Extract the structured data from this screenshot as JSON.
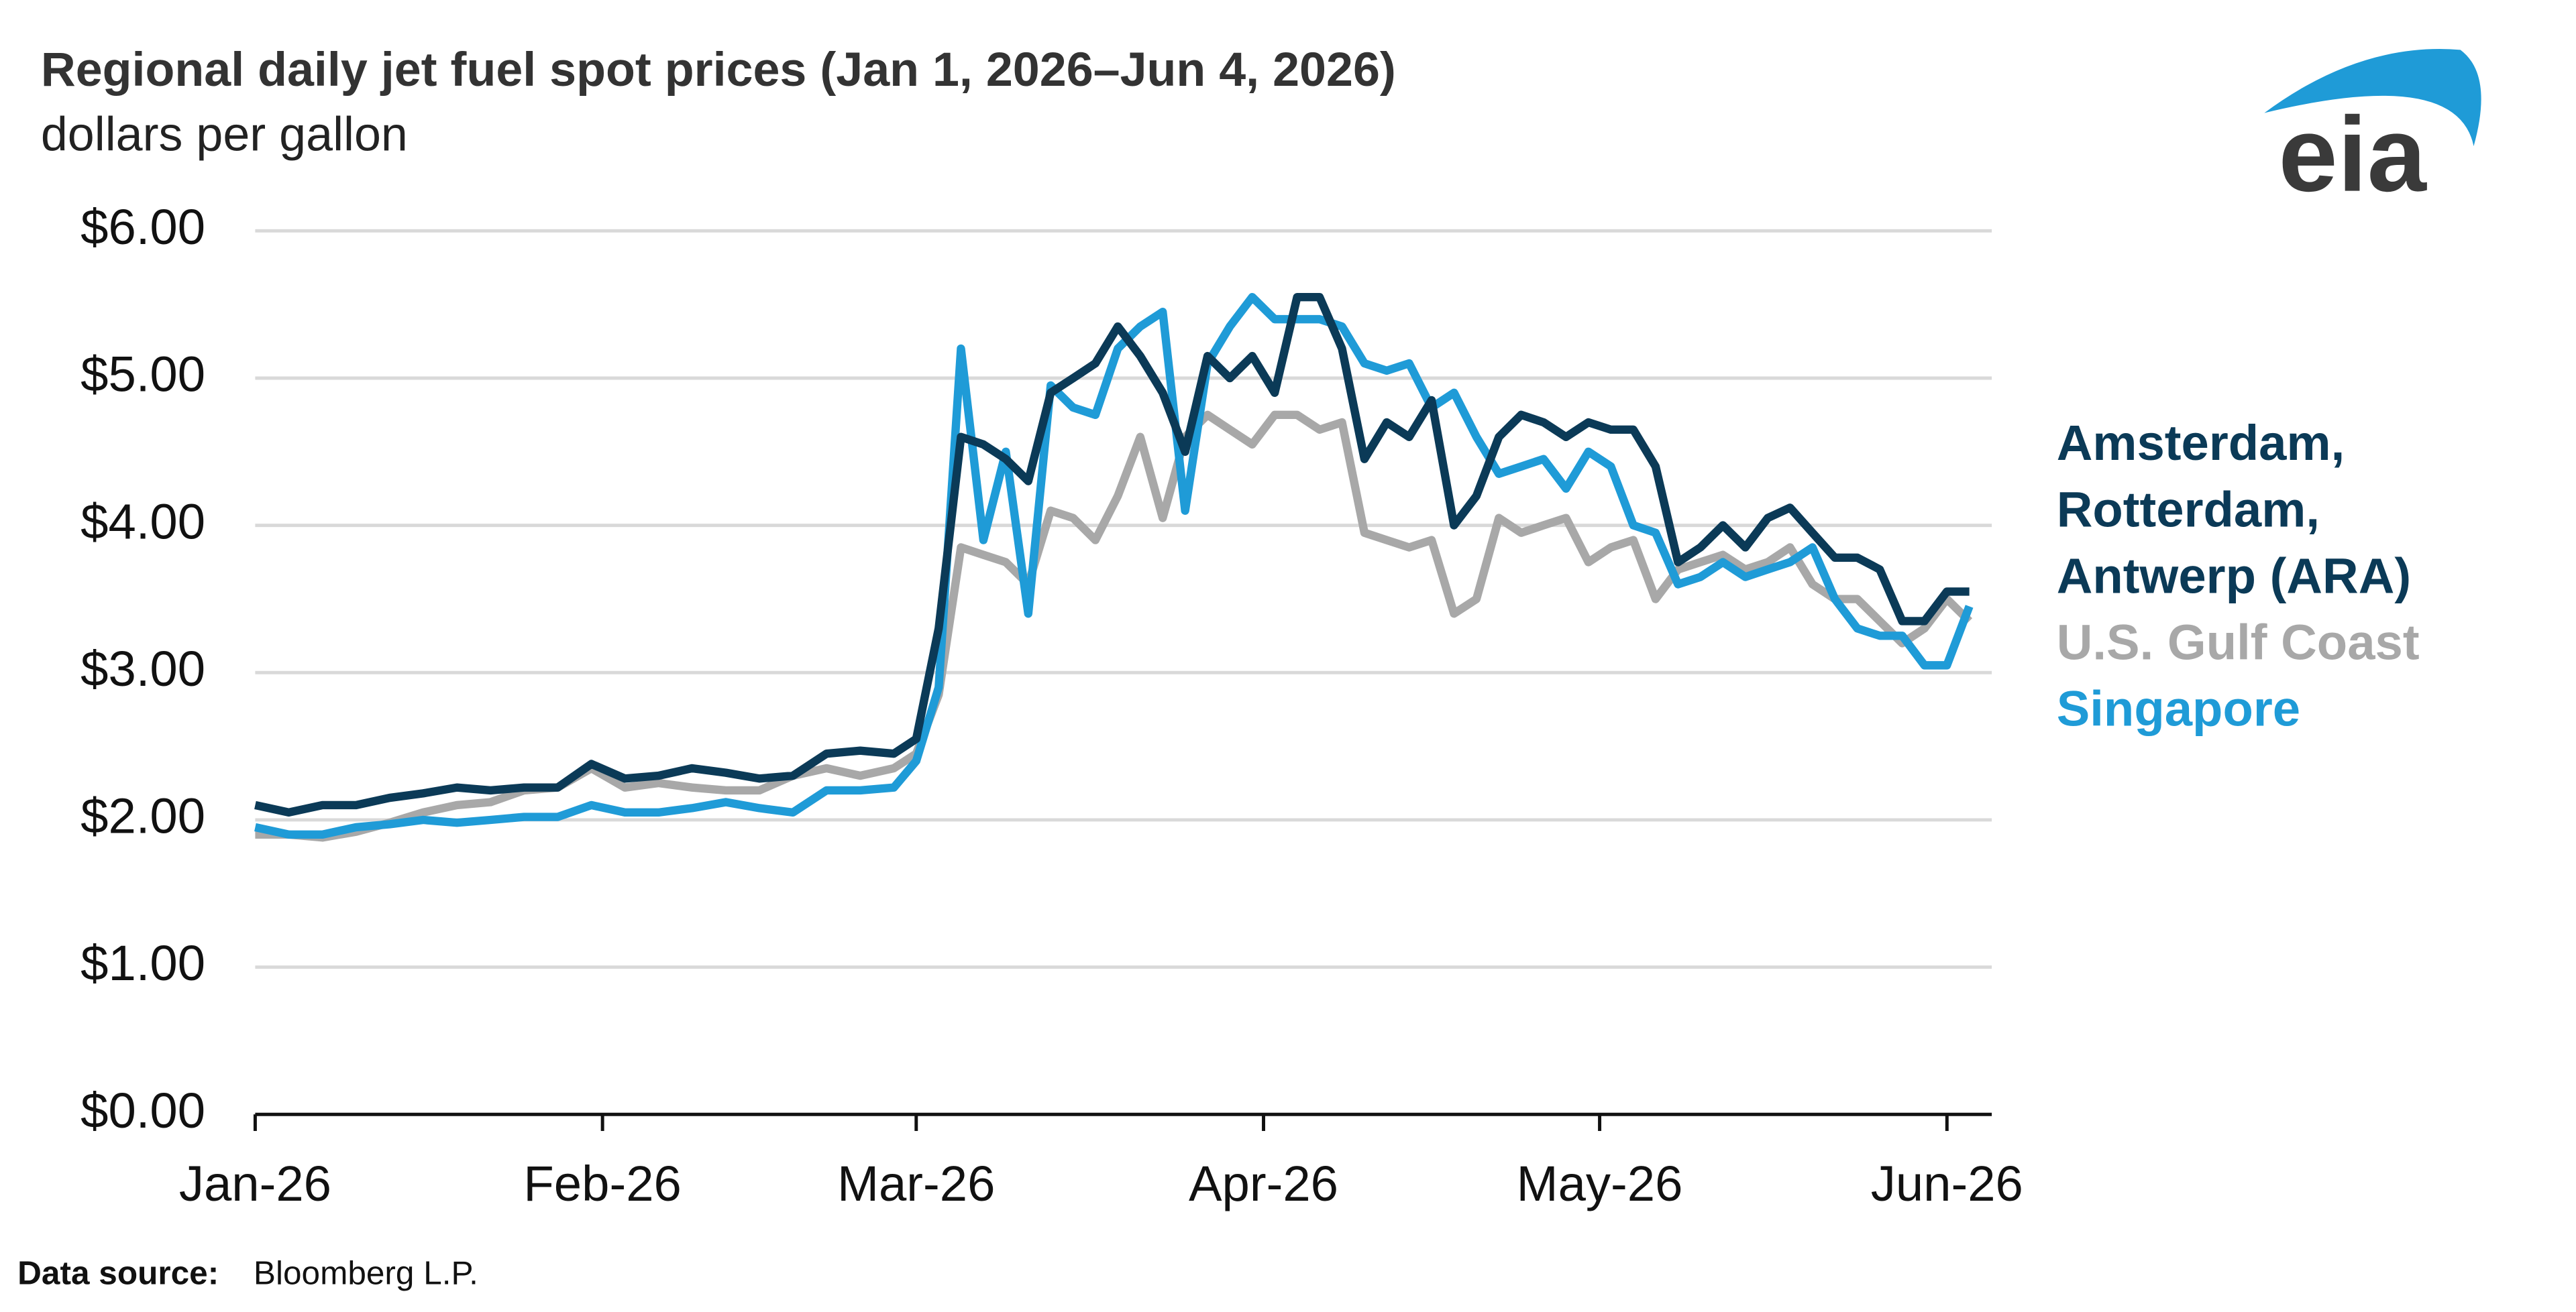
{
  "chart_data": {
    "type": "line",
    "title": "Regional daily jet fuel spot prices (Jan 1, 2026–Jun 4, 2026)",
    "subtitle": "dollars per gallon",
    "source_label": "Data source:",
    "source": "Bloomberg L.P.",
    "logo": "eia",
    "xlim": [
      0,
      155
    ],
    "xticks": [
      {
        "value": 0,
        "label": "Jan-26"
      },
      {
        "value": 31,
        "label": "Feb-26"
      },
      {
        "value": 59,
        "label": "Mar-26"
      },
      {
        "value": 90,
        "label": "Apr-26"
      },
      {
        "value": 120,
        "label": "May-26"
      },
      {
        "value": 151,
        "label": "Jun-26"
      }
    ],
    "ylim": [
      0,
      6
    ],
    "yticks": [
      {
        "value": 0,
        "label": "$0.00"
      },
      {
        "value": 1,
        "label": "$1.00"
      },
      {
        "value": 2,
        "label": "$2.00"
      },
      {
        "value": 3,
        "label": "$3.00"
      },
      {
        "value": 4,
        "label": "$4.00"
      },
      {
        "value": 5,
        "label": "$5.00"
      },
      {
        "value": 6,
        "label": "$6.00"
      }
    ],
    "grid": true,
    "legend": "right",
    "x": [
      0,
      3,
      6,
      9,
      12,
      15,
      18,
      21,
      24,
      27,
      30,
      33,
      36,
      39,
      42,
      45,
      48,
      51,
      54,
      57,
      59,
      61,
      63,
      65,
      67,
      69,
      71,
      73,
      75,
      77,
      79,
      81,
      83,
      85,
      87,
      89,
      91,
      93,
      95,
      97,
      99,
      101,
      103,
      105,
      107,
      109,
      111,
      113,
      115,
      117,
      119,
      121,
      123,
      125,
      127,
      129,
      131,
      133,
      135,
      137,
      139,
      141,
      143,
      145,
      147,
      149,
      151,
      153
    ],
    "series": [
      {
        "name": "U.S. Gulf Coast",
        "color": "#a8a8a8",
        "values": [
          1.9,
          1.9,
          1.88,
          1.92,
          1.98,
          2.05,
          2.1,
          2.12,
          2.2,
          2.22,
          2.35,
          2.22,
          2.25,
          2.22,
          2.2,
          2.2,
          2.3,
          2.35,
          2.3,
          2.35,
          2.45,
          2.85,
          3.85,
          3.8,
          3.75,
          3.6,
          4.1,
          4.05,
          3.9,
          4.2,
          4.6,
          4.05,
          4.6,
          4.75,
          4.65,
          4.55,
          4.75,
          4.75,
          4.65,
          4.7,
          3.95,
          3.9,
          3.85,
          3.9,
          3.4,
          3.5,
          4.05,
          3.95,
          4.0,
          4.05,
          3.75,
          3.85,
          3.9,
          3.5,
          3.7,
          3.75,
          3.8,
          3.7,
          3.75,
          3.85,
          3.6,
          3.5,
          3.5,
          3.35,
          3.2,
          3.3,
          3.5,
          3.35
        ]
      },
      {
        "name": "Singapore",
        "color": "#1f9bd7",
        "values": [
          1.95,
          1.9,
          1.9,
          1.95,
          1.97,
          2.0,
          1.98,
          2.0,
          2.02,
          2.02,
          2.1,
          2.05,
          2.05,
          2.08,
          2.12,
          2.08,
          2.05,
          2.2,
          2.2,
          2.22,
          2.4,
          2.9,
          5.2,
          3.9,
          4.5,
          3.4,
          4.95,
          4.8,
          4.75,
          5.2,
          5.35,
          5.45,
          4.1,
          5.1,
          5.35,
          5.55,
          5.4,
          5.4,
          5.4,
          5.35,
          5.1,
          5.05,
          5.1,
          4.8,
          4.9,
          4.6,
          4.35,
          4.4,
          4.45,
          4.25,
          4.5,
          4.4,
          4.0,
          3.95,
          3.6,
          3.65,
          3.75,
          3.65,
          3.7,
          3.75,
          3.85,
          3.5,
          3.3,
          3.25,
          3.25,
          3.05,
          3.05,
          3.45
        ]
      },
      {
        "name": "Amsterdam, Rotterdam, Antwerp (ARA)",
        "color": "#0b3a57",
        "values": [
          2.1,
          2.05,
          2.1,
          2.1,
          2.15,
          2.18,
          2.22,
          2.2,
          2.22,
          2.22,
          2.38,
          2.28,
          2.3,
          2.35,
          2.32,
          2.28,
          2.3,
          2.45,
          2.47,
          2.45,
          2.55,
          3.3,
          4.6,
          4.55,
          4.45,
          4.3,
          4.9,
          5.0,
          5.1,
          5.35,
          5.15,
          4.9,
          4.5,
          5.15,
          5.0,
          5.15,
          4.9,
          5.55,
          5.55,
          5.2,
          4.45,
          4.7,
          4.6,
          4.85,
          4.0,
          4.2,
          4.6,
          4.75,
          4.7,
          4.6,
          4.7,
          4.65,
          4.65,
          4.4,
          3.75,
          3.85,
          4.0,
          3.85,
          4.05,
          4.12,
          3.95,
          3.78,
          3.78,
          3.7,
          3.35,
          3.35,
          3.55,
          3.55
        ]
      }
    ]
  }
}
